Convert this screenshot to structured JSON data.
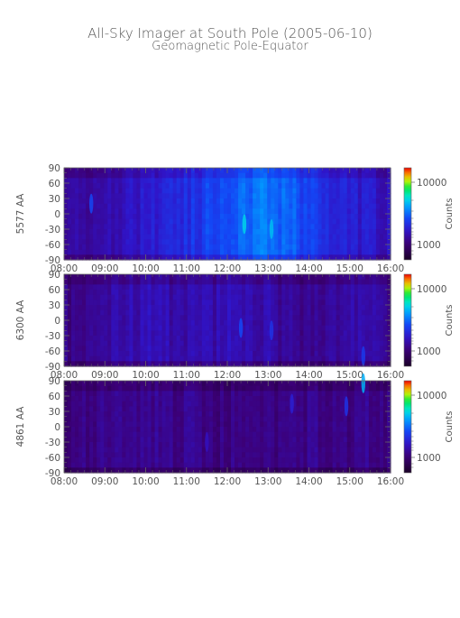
{
  "title": "All-Sky Imager at South Pole (2005-06-10)",
  "subtitle": "Geomagnetic Pole-Equator",
  "chart_data": [
    {
      "type": "heatmap",
      "ylabel": "5577 AA",
      "x_tick_labels": [
        "08:00",
        "09:00",
        "10:00",
        "11:00",
        "12:00",
        "13:00",
        "14:00",
        "15:00",
        "16:00"
      ],
      "y_tick_labels": [
        "90",
        "60",
        "30",
        "0",
        "-30",
        "-60",
        "-90"
      ],
      "xlim": [
        "08:00",
        "16:00"
      ],
      "ylim": [
        -90,
        90
      ],
      "colorbar": {
        "label": "Counts",
        "ticks": [
          "10000",
          "1000"
        ],
        "scale": "log"
      },
      "base_intensity": [
        0.22,
        0.26,
        0.28,
        0.3,
        0.33,
        0.36,
        0.4,
        0.46,
        0.5,
        0.52,
        0.5,
        0.45,
        0.4,
        0.35,
        0.32,
        0.3
      ],
      "bright_features": [
        {
          "time": "12:25",
          "lat": -20,
          "intensity": 0.65
        },
        {
          "time": "13:05",
          "lat": -30,
          "intensity": 0.62
        },
        {
          "time": "08:40",
          "lat": 20,
          "intensity": 0.45
        }
      ]
    },
    {
      "type": "heatmap",
      "ylabel": "6300 AA",
      "x_tick_labels": [
        "08:00",
        "09:00",
        "10:00",
        "11:00",
        "12:00",
        "13:00",
        "14:00",
        "15:00",
        "16:00"
      ],
      "y_tick_labels": [
        "90",
        "60",
        "30",
        "0",
        "-30",
        "-60",
        "-90"
      ],
      "xlim": [
        "08:00",
        "16:00"
      ],
      "ylim": [
        -90,
        90
      ],
      "colorbar": {
        "label": "Counts",
        "ticks": [
          "10000",
          "1000"
        ],
        "scale": "log"
      },
      "base_intensity": [
        0.2,
        0.23,
        0.26,
        0.28,
        0.28,
        0.27,
        0.26,
        0.27,
        0.29,
        0.27,
        0.24,
        0.22,
        0.22,
        0.24,
        0.26,
        0.22
      ],
      "bright_features": [
        {
          "time": "12:20",
          "lat": -15,
          "intensity": 0.45
        },
        {
          "time": "13:05",
          "lat": -20,
          "intensity": 0.4
        },
        {
          "time": "15:20",
          "lat": -70,
          "intensity": 0.42
        }
      ]
    },
    {
      "type": "heatmap",
      "ylabel": "4861 AA",
      "x_tick_labels": [
        "08:00",
        "09:00",
        "10:00",
        "11:00",
        "12:00",
        "13:00",
        "14:00",
        "15:00",
        "16:00"
      ],
      "y_tick_labels": [
        "90",
        "60",
        "30",
        "0",
        "-30",
        "-60",
        "-90"
      ],
      "xlim": [
        "08:00",
        "16:00"
      ],
      "ylim": [
        -90,
        90
      ],
      "colorbar": {
        "label": "Counts",
        "ticks": [
          "10000",
          "1000"
        ],
        "scale": "log"
      },
      "base_intensity": [
        0.18,
        0.19,
        0.2,
        0.2,
        0.21,
        0.21,
        0.21,
        0.2,
        0.2,
        0.2,
        0.2,
        0.21,
        0.2,
        0.2,
        0.22,
        0.2
      ],
      "bright_features": [
        {
          "time": "15:20",
          "lat": 85,
          "intensity": 0.6
        },
        {
          "time": "14:55",
          "lat": 40,
          "intensity": 0.4
        },
        {
          "time": "13:35",
          "lat": 45,
          "intensity": 0.35
        },
        {
          "time": "11:30",
          "lat": -30,
          "intensity": 0.3
        }
      ]
    }
  ]
}
